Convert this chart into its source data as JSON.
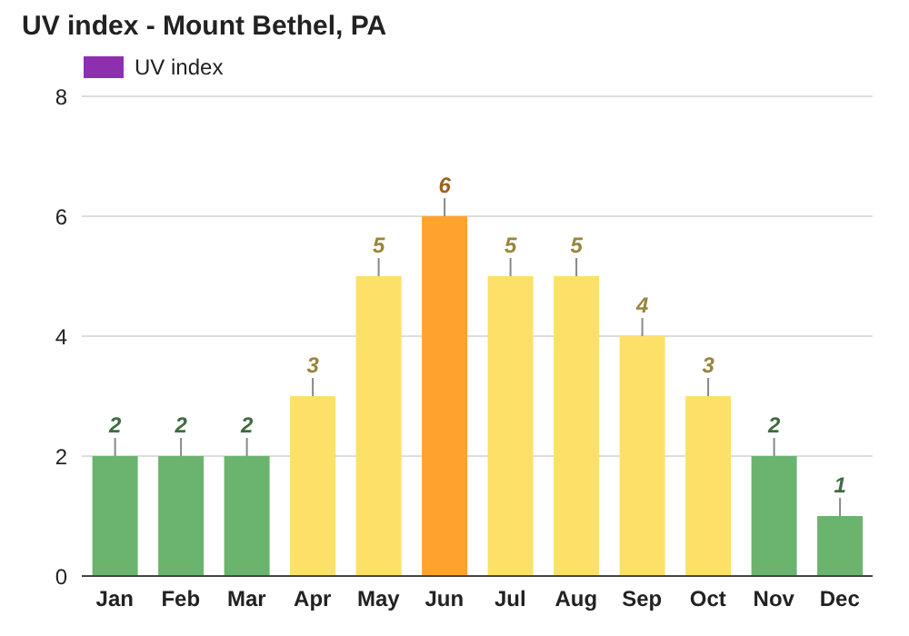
{
  "chart_data": {
    "type": "bar",
    "title": "UV index - Mount Bethel, PA",
    "categories": [
      "Jan",
      "Feb",
      "Mar",
      "Apr",
      "May",
      "Jun",
      "Jul",
      "Aug",
      "Sep",
      "Oct",
      "Nov",
      "Dec"
    ],
    "series": [
      {
        "name": "UV index",
        "color": "#8e2fb0",
        "values": [
          2,
          2,
          2,
          3,
          5,
          6,
          5,
          5,
          4,
          3,
          2,
          1
        ],
        "colors": [
          "#6ab46e",
          "#6ab46e",
          "#6ab46e",
          "#fde068",
          "#fde068",
          "#ffa32e",
          "#fde068",
          "#fde068",
          "#fde068",
          "#fde068",
          "#6ab46e",
          "#6ab46e"
        ]
      }
    ],
    "ylim": [
      0,
      8
    ],
    "yticks": [
      0,
      2,
      4,
      6,
      8
    ],
    "grid": "y",
    "legend": "top left",
    "data_labels": true
  }
}
